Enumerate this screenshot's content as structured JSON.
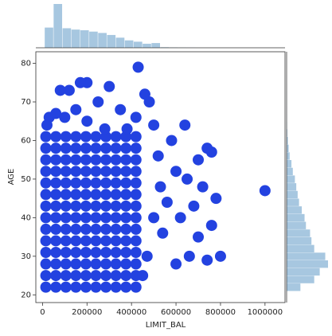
{
  "chart_data": {
    "type": "scatter",
    "xlabel": "LIMIT_BAL",
    "ylabel": "AGE",
    "color": "#2342e0",
    "xlim": [
      -30000,
      1090000
    ],
    "ylim": [
      18,
      83
    ],
    "xticks": [
      0,
      200000,
      400000,
      600000,
      800000,
      1000000
    ],
    "yticks": [
      20,
      30,
      40,
      50,
      60,
      70,
      80
    ],
    "x": [
      15000,
      60000,
      105000,
      150000,
      195000,
      240000,
      285000,
      330000,
      375000,
      420000,
      15000,
      60000,
      105000,
      150000,
      195000,
      240000,
      285000,
      330000,
      375000,
      420000,
      15000,
      60000,
      105000,
      150000,
      195000,
      240000,
      285000,
      330000,
      375000,
      420000,
      15000,
      60000,
      105000,
      150000,
      195000,
      240000,
      285000,
      330000,
      375000,
      420000,
      15000,
      60000,
      105000,
      150000,
      195000,
      240000,
      285000,
      330000,
      375000,
      420000,
      15000,
      60000,
      105000,
      150000,
      195000,
      240000,
      285000,
      330000,
      375000,
      420000,
      15000,
      60000,
      105000,
      150000,
      195000,
      240000,
      285000,
      330000,
      375000,
      420000,
      15000,
      60000,
      105000,
      150000,
      195000,
      240000,
      285000,
      330000,
      375000,
      420000,
      15000,
      60000,
      105000,
      150000,
      195000,
      240000,
      285000,
      330000,
      375000,
      420000,
      15000,
      60000,
      105000,
      150000,
      195000,
      240000,
      285000,
      330000,
      375000,
      420000,
      15000,
      60000,
      105000,
      150000,
      195000,
      240000,
      285000,
      330000,
      375000,
      420000,
      15000,
      60000,
      105000,
      150000,
      195000,
      240000,
      285000,
      330000,
      375000,
      420000,
      15000,
      60000,
      105000,
      150000,
      195000,
      240000,
      285000,
      330000,
      375000,
      420000,
      15000,
      60000,
      105000,
      150000,
      195000,
      240000,
      285000,
      330000,
      375000,
      420000,
      430000,
      500000,
      640000,
      580000,
      740000,
      700000,
      760000,
      1000000,
      600000,
      650000,
      720000,
      780000,
      560000,
      680000,
      620000,
      760000,
      700000,
      540000,
      800000,
      660000,
      600000,
      740000,
      480000,
      460000,
      120000,
      200000,
      170000,
      300000,
      250000,
      80000,
      30000,
      350000,
      420000,
      520000,
      470000,
      450000,
      500000,
      530000,
      20000,
      60000,
      100000,
      150000,
      200000,
      280000,
      380000
    ],
    "y": [
      22,
      22,
      22,
      22,
      22,
      22,
      22,
      22,
      22,
      22,
      25,
      25,
      25,
      25,
      25,
      25,
      25,
      25,
      25,
      25,
      28,
      28,
      28,
      28,
      28,
      28,
      28,
      28,
      28,
      28,
      31,
      31,
      31,
      31,
      31,
      31,
      31,
      31,
      31,
      31,
      34,
      34,
      34,
      34,
      34,
      34,
      34,
      34,
      34,
      34,
      37,
      37,
      37,
      37,
      37,
      37,
      37,
      37,
      37,
      37,
      40,
      40,
      40,
      40,
      40,
      40,
      40,
      40,
      40,
      40,
      43,
      43,
      43,
      43,
      43,
      43,
      43,
      43,
      43,
      43,
      46,
      46,
      46,
      46,
      46,
      46,
      46,
      46,
      46,
      46,
      49,
      49,
      49,
      49,
      49,
      49,
      49,
      49,
      49,
      49,
      52,
      52,
      52,
      52,
      52,
      52,
      52,
      52,
      52,
      52,
      55,
      55,
      55,
      55,
      55,
      55,
      55,
      55,
      55,
      55,
      58,
      58,
      58,
      58,
      58,
      58,
      58,
      58,
      58,
      58,
      61,
      61,
      61,
      61,
      61,
      61,
      61,
      61,
      61,
      61,
      79,
      64,
      64,
      60,
      58,
      55,
      57,
      47,
      52,
      50,
      48,
      45,
      44,
      43,
      40,
      38,
      35,
      36,
      30,
      30,
      28,
      29,
      70,
      72,
      73,
      75,
      75,
      74,
      70,
      73,
      66,
      68,
      66,
      56,
      30,
      25,
      40,
      48,
      64,
      67,
      66,
      68,
      65,
      63,
      63
    ],
    "marginal_color": "#a7c7e0",
    "marginal_x": {
      "bins": [
        10000,
        50000,
        90000,
        130000,
        170000,
        210000,
        250000,
        290000,
        330000,
        370000,
        410000,
        450000,
        490000,
        530000,
        570000,
        610000,
        650000,
        690000,
        730000,
        770000,
        810000,
        850000,
        890000,
        930000,
        970000,
        1010000
      ],
      "counts": [
        3000,
        6500,
        2900,
        2700,
        2600,
        2400,
        2200,
        1900,
        1500,
        1100,
        900,
        600,
        700,
        80,
        60,
        30,
        20,
        10,
        5,
        3,
        2,
        1,
        0,
        0,
        1
      ]
    },
    "marginal_y": {
      "bins": [
        21,
        23,
        25,
        27,
        29,
        31,
        33,
        35,
        37,
        39,
        41,
        43,
        45,
        47,
        49,
        51,
        53,
        55,
        57,
        59,
        61,
        63,
        65,
        67,
        69,
        71,
        73,
        75,
        77,
        79
      ],
      "counts": [
        1000,
        2000,
        2400,
        3000,
        2800,
        2000,
        1800,
        1700,
        1400,
        1300,
        1100,
        900,
        800,
        700,
        600,
        450,
        350,
        220,
        150,
        90,
        50,
        30,
        20,
        15,
        10,
        8,
        5,
        2,
        1
      ]
    }
  }
}
